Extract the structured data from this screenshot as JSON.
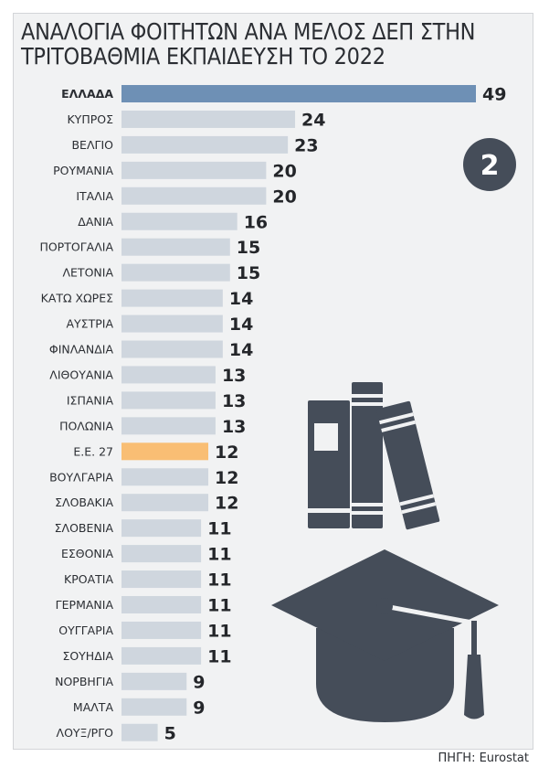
{
  "figure": {
    "badge": "2",
    "source": "ΠΗΓΗ: Eurostat",
    "colors": {
      "default_bar": "#cfd6de",
      "highlight_bar": "#6e90b5",
      "eu_bar": "#f9be74",
      "icon": "#454d59",
      "panel": "#f1f2f3"
    },
    "icons": [
      "books-icon",
      "graduation-cap-icon"
    ]
  },
  "chart_data": {
    "type": "bar",
    "orientation": "horizontal",
    "title": "ΑΝΑΛΟΓΙΑ ΦΟΙΤΗΤΩΝ ΑΝΑ ΜΕΛΟΣ ΔΕΠ ΣΤΗΝ ΤΡΙΤΟΒΑΘΜΙΑ ΕΚΠΑΙΔΕΥΣΗ ΤΟ 2022",
    "xlim": [
      0,
      49
    ],
    "categories": [
      "ΕΛΛΑΔΑ",
      "ΚΥΠΡΟΣ",
      "ΒΕΛΓΙΟ",
      "ΡΟΥΜΑΝΙΑ",
      "ΙΤΑΛΙΑ",
      "ΔΑΝΙΑ",
      "ΠΟΡΤΟΓΑΛΙΑ",
      "ΛΕΤΟΝΙΑ",
      "ΚΑΤΩ ΧΩΡΕΣ",
      "ΑΥΣΤΡΙΑ",
      "ΦΙΝΛΑΝΔΙΑ",
      "ΛΙΘΟΥΑΝΙΑ",
      "ΙΣΠΑΝΙΑ",
      "ΠΟΛΩΝΙΑ",
      "Ε.Ε. 27",
      "ΒΟΥΛΓΑΡΙΑ",
      "ΣΛΟΒΑΚΙΑ",
      "ΣΛΟΒΕΝΙΑ",
      "ΕΣΘΟΝΙΑ",
      "ΚΡΟΑΤΙΑ",
      "ΓΕΡΜΑΝΙΑ",
      "ΟΥΓΓΑΡΙΑ",
      "ΣΟΥΗΔΙΑ",
      "ΝΟΡΒΗΓΙΑ",
      "ΜΑΛΤΑ",
      "ΛΟΥΞ/ΡΓΟ"
    ],
    "values": [
      49,
      24,
      23,
      20,
      20,
      16,
      15,
      15,
      14,
      14,
      14,
      13,
      13,
      13,
      12,
      12,
      12,
      11,
      11,
      11,
      11,
      11,
      11,
      9,
      9,
      5
    ],
    "highlight": {
      "ΕΛΛΑΔΑ": "highlight_bar",
      "Ε.Ε. 27": "eu_bar"
    }
  }
}
